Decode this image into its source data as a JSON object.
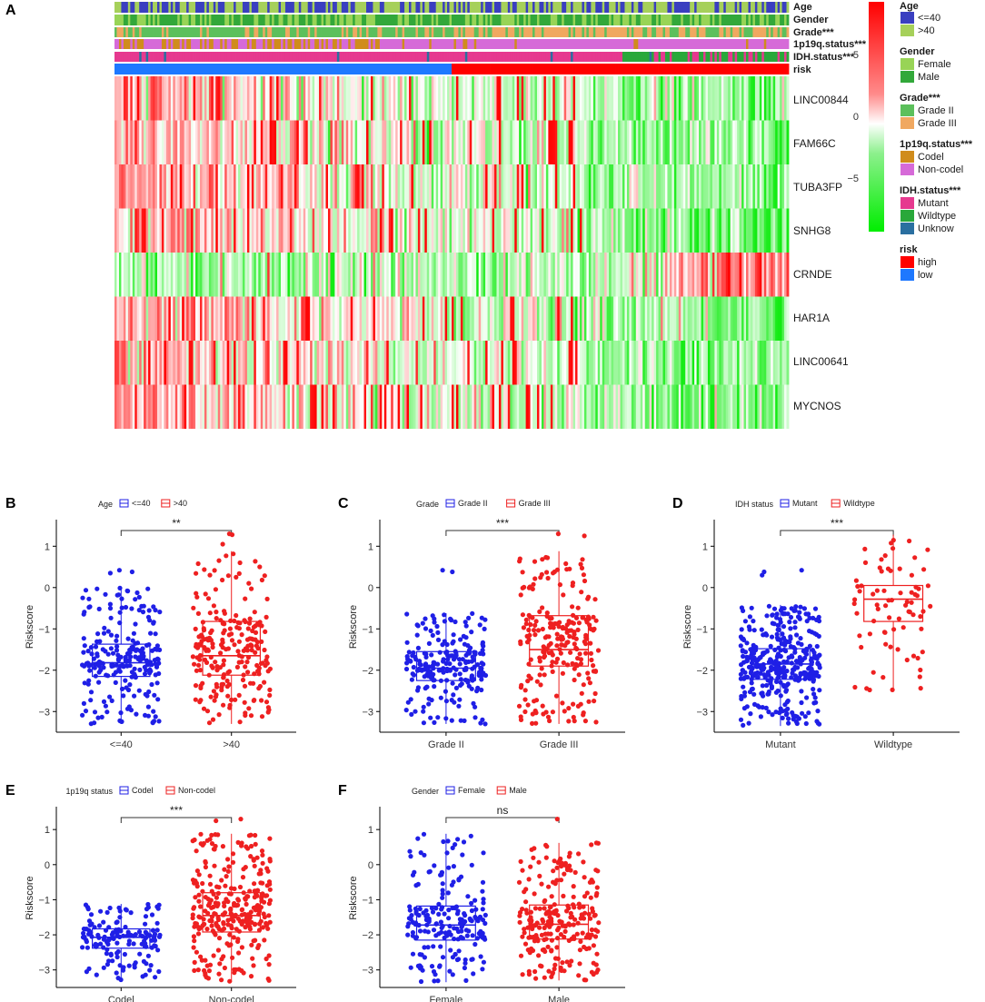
{
  "colors": {
    "blue": "#1f1fe6",
    "red": "#ee2020",
    "age_le40": "#3a3fc0",
    "age_gt40": "#a6d05a",
    "female": "#98d456",
    "male": "#32a83a",
    "grade2": "#5cc05c",
    "grade3": "#f0a860",
    "codel": "#d08c1c",
    "noncodel": "#d66ad8",
    "mutant": "#e6398f",
    "wildtype": "#29a83a",
    "unknow": "#2a6fa0",
    "high": "#ff0000",
    "low": "#1e78ff"
  },
  "heatmap": {
    "panel_label": "A",
    "annotation_rows": [
      "Age",
      "Gender",
      "Grade***",
      "1p19q.status***",
      "IDH.status***",
      "risk"
    ],
    "genes": [
      "LINC00844",
      "FAM66C",
      "TUBA3FP",
      "SNHG8",
      "CRNDE",
      "HAR1A",
      "LINC00641",
      "MYCNOS"
    ],
    "colorbar_ticks": [
      "5",
      "0",
      "−5"
    ],
    "legend": [
      {
        "title": "Age",
        "items": [
          "<=40",
          ">40"
        ],
        "colors": [
          "#3a3fc0",
          "#a6d05a"
        ]
      },
      {
        "title": "Gender",
        "items": [
          "Female",
          "Male"
        ],
        "colors": [
          "#98d456",
          "#32a83a"
        ]
      },
      {
        "title": "Grade***",
        "items": [
          "Grade II",
          "Grade III"
        ],
        "colors": [
          "#5cc05c",
          "#f0a860"
        ]
      },
      {
        "title": "1p19q.status***",
        "items": [
          "Codel",
          "Non-codel"
        ],
        "colors": [
          "#d08c1c",
          "#d66ad8"
        ]
      },
      {
        "title": "IDH.status***",
        "items": [
          "Mutant",
          "Wildtype",
          "Unknow"
        ],
        "colors": [
          "#e6398f",
          "#29a83a",
          "#2a6fa0"
        ]
      },
      {
        "title": "risk",
        "items": [
          "high",
          "low"
        ],
        "colors": [
          "#ff0000",
          "#1e78ff"
        ]
      }
    ]
  },
  "chart_data": [
    {
      "type": "heatmap",
      "panel": "A",
      "rows": [
        "LINC00844",
        "FAM66C",
        "TUBA3FP",
        "SNHG8",
        "CRNDE",
        "HAR1A",
        "LINC00641",
        "MYCNOS"
      ],
      "colorbar_range": [
        -7,
        8
      ],
      "annotations": [
        "Age",
        "Gender",
        "Grade***",
        "1p19q.status***",
        "IDH.status***",
        "risk"
      ]
    },
    {
      "type": "box",
      "panel": "B",
      "legend_title": "Age",
      "categories": [
        "<=40",
        ">40"
      ],
      "ylabel": "Riskscore",
      "xlabel": "",
      "ylim": [
        -3.5,
        1.6
      ],
      "yticks": [
        -3,
        -2,
        -1,
        0,
        1
      ],
      "significance": "**",
      "series": [
        {
          "name": "<=40",
          "color": "blue",
          "min": -3.3,
          "q1": -2.15,
          "median": -1.82,
          "q3": -1.37,
          "max": 0.0,
          "outliers": [
            0.42,
            0.38,
            0.35
          ],
          "n": 230
        },
        {
          "name": ">40",
          "color": "red",
          "min": -3.3,
          "q1": -2.12,
          "median": -1.65,
          "q3": -0.82,
          "max": 0.88,
          "outliers": [
            1.28,
            1.3,
            1.05
          ],
          "n": 230
        }
      ]
    },
    {
      "type": "box",
      "panel": "C",
      "legend_title": "Grade",
      "categories": [
        "Grade II",
        "Grade III"
      ],
      "ylabel": "Riskscore",
      "xlabel": "",
      "ylim": [
        -3.5,
        1.6
      ],
      "yticks": [
        -3,
        -2,
        -1,
        0,
        1
      ],
      "significance": "***",
      "series": [
        {
          "name": "Grade II",
          "color": "blue",
          "min": -3.3,
          "q1": -2.25,
          "median": -1.95,
          "q3": -1.55,
          "max": -0.62,
          "outliers": [
            0.42,
            0.38
          ],
          "n": 220
        },
        {
          "name": "Grade III",
          "color": "red",
          "min": -3.3,
          "q1": -1.9,
          "median": -1.5,
          "q3": -0.68,
          "max": 0.88,
          "outliers": [
            1.3,
            1.25
          ],
          "n": 230
        }
      ]
    },
    {
      "type": "box",
      "panel": "D",
      "legend_title": "IDH status",
      "categories": [
        "Mutant",
        "Wildtype"
      ],
      "ylabel": "Riskscore",
      "xlabel": "",
      "ylim": [
        -3.5,
        1.6
      ],
      "yticks": [
        -3,
        -2,
        -1,
        0,
        1
      ],
      "significance": "***",
      "series": [
        {
          "name": "Mutant",
          "color": "blue",
          "min": -3.35,
          "q1": -2.22,
          "median": -1.85,
          "q3": -1.48,
          "max": -0.42,
          "outliers": [
            0.42,
            0.38,
            0.3
          ],
          "n": 380
        },
        {
          "name": "Wildtype",
          "color": "red",
          "min": -2.5,
          "q1": -0.82,
          "median": -0.28,
          "q3": 0.05,
          "max": 1.28,
          "outliers": [],
          "n": 75
        }
      ]
    },
    {
      "type": "box",
      "panel": "E",
      "legend_title": "1p19q status",
      "categories": [
        "Codel",
        "Non-codel"
      ],
      "ylabel": "Riskscore",
      "xlabel": "",
      "ylim": [
        -3.5,
        1.6
      ],
      "yticks": [
        -3,
        -2,
        -1,
        0,
        1
      ],
      "significance": "***",
      "series": [
        {
          "name": "Codel",
          "color": "blue",
          "min": -3.3,
          "q1": -2.38,
          "median": -2.07,
          "q3": -1.83,
          "max": -1.12,
          "outliers": [],
          "n": 150
        },
        {
          "name": "Non-codel",
          "color": "red",
          "min": -3.35,
          "q1": -1.92,
          "median": -1.45,
          "q3": -0.8,
          "max": 0.88,
          "outliers": [
            1.3,
            1.25
          ],
          "n": 300
        }
      ]
    },
    {
      "type": "box",
      "panel": "F",
      "legend_title": "Gender",
      "categories": [
        "Female",
        "Male"
      ],
      "ylabel": "Riskscore",
      "xlabel": "",
      "ylim": [
        -3.5,
        1.6
      ],
      "yticks": [
        -3,
        -2,
        -1,
        0,
        1
      ],
      "significance": "ns",
      "series": [
        {
          "name": "Female",
          "color": "blue",
          "min": -3.35,
          "q1": -2.15,
          "median": -1.72,
          "q3": -1.18,
          "max": 0.88,
          "outliers": [],
          "n": 200
        },
        {
          "name": "Male",
          "color": "red",
          "min": -3.3,
          "q1": -2.12,
          "median": -1.7,
          "q3": -1.15,
          "max": 0.62,
          "outliers": [
            1.3
          ],
          "n": 240
        }
      ]
    }
  ]
}
